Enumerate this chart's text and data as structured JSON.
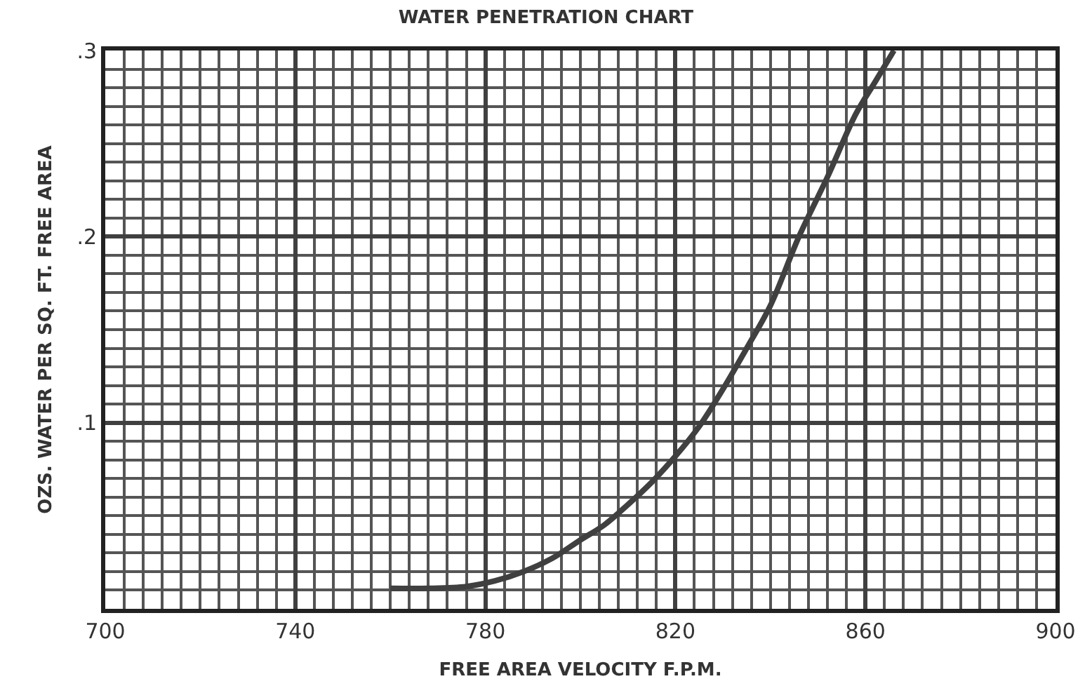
{
  "chart_data": {
    "type": "line",
    "title": "WATER PENETRATION CHART",
    "xlabel": "FREE AREA VELOCITY F.P.M.",
    "ylabel": "OZS. WATER PER SQ. FT. FREE AREA",
    "series": [
      {
        "color": "#404040",
        "x": [
          760,
          768,
          776,
          782,
          788,
          794,
          800,
          805,
          810,
          815,
          820,
          825,
          830,
          835,
          840,
          846,
          852,
          858,
          862,
          866
        ],
        "values": [
          0.011,
          0.011,
          0.012,
          0.015,
          0.02,
          0.027,
          0.037,
          0.045,
          0.056,
          0.068,
          0.082,
          0.098,
          0.118,
          0.14,
          0.163,
          0.2,
          0.232,
          0.266,
          0.283,
          0.3
        ]
      }
    ],
    "xlim": [
      700,
      900
    ],
    "xticks": [
      700,
      740,
      780,
      820,
      860,
      900
    ],
    "ylim": [
      0,
      0.3
    ],
    "yticks": [
      {
        "value": 0,
        "label": null
      },
      {
        "value": 0.1,
        "label": ".1"
      },
      {
        "value": 0.2,
        "label": ".2"
      },
      {
        "value": 0.3,
        "label": ".3"
      }
    ],
    "grid": true,
    "legend": false,
    "marker": "none",
    "line_style": "solid"
  }
}
